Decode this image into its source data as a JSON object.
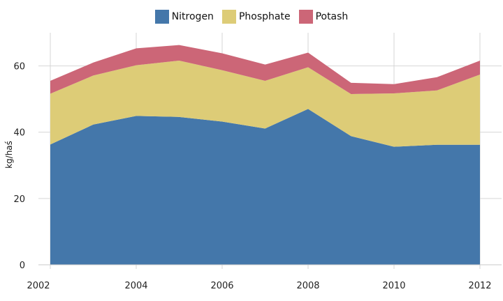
{
  "chart_data": {
    "type": "area",
    "stacked": true,
    "title": "",
    "xlabel": "",
    "ylabel": "kg/haś",
    "x": [
      2002,
      2003,
      2004,
      2005,
      2006,
      2007,
      2008,
      2009,
      2010,
      2011,
      2012
    ],
    "series": [
      {
        "name": "Nitrogen",
        "color": "#4477aa",
        "values": [
          36.3,
          42.3,
          44.9,
          44.6,
          43.2,
          41.1,
          47.0,
          38.8,
          35.6,
          36.2,
          36.2
        ]
      },
      {
        "name": "Phosphate",
        "color": "#ddcc77",
        "values": [
          15.3,
          14.8,
          15.3,
          17.0,
          15.5,
          14.4,
          12.6,
          12.7,
          16.1,
          16.4,
          21.2
        ]
      },
      {
        "name": "Potash",
        "color": "#cc6677",
        "values": [
          3.9,
          3.9,
          5.1,
          4.7,
          5.1,
          4.9,
          4.4,
          3.4,
          2.8,
          4.0,
          4.2
        ]
      }
    ],
    "ylim": [
      0,
      70
    ],
    "xlim": [
      2002,
      2012
    ],
    "yticks": [
      0,
      20,
      40,
      60
    ],
    "xticks": [
      2002,
      2004,
      2006,
      2008,
      2010,
      2012
    ],
    "grid": true,
    "legend_position": "top-center"
  }
}
